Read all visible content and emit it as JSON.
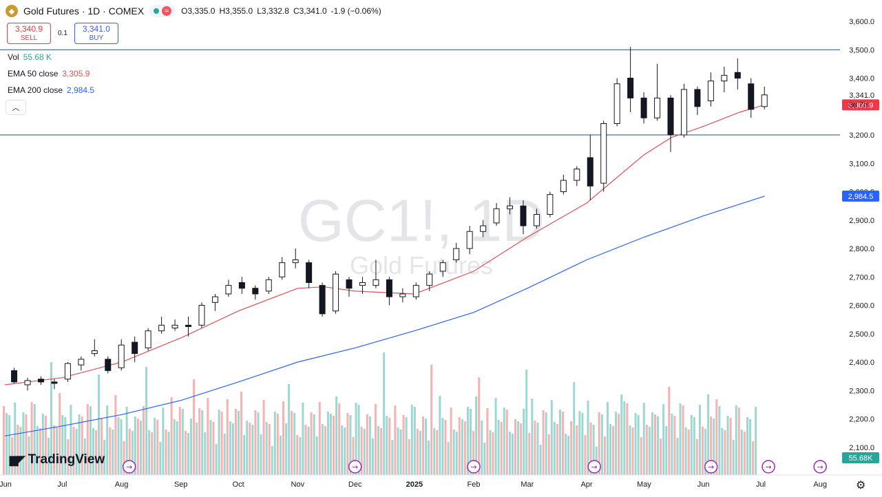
{
  "header": {
    "title": "Gold Futures · 1D · COMEX",
    "open": "3,335.0",
    "high": "3,355.0",
    "low": "3,332.8",
    "close": "3,341.0",
    "change": "-1.9 (−0.06%)",
    "open_label": "O",
    "high_label": "H",
    "low_label": "L",
    "close_label": "C"
  },
  "trade": {
    "sell_price": "3,340.9",
    "sell_label": "SELL",
    "spread": "0.1",
    "buy_price": "3,341.0",
    "buy_label": "BUY"
  },
  "indicators": {
    "vol_label": "Vol",
    "vol_value": "55.68 K",
    "ema50_label": "EMA 50 close",
    "ema50_value": "3,305.9",
    "ema200_label": "EMA 200 close",
    "ema200_value": "2,984.5"
  },
  "collapse_icon": "chevron-up-icon",
  "watermark": {
    "symbol": "GC1!, 1D",
    "name": "Gold Futures"
  },
  "logo": "TradingView",
  "colors": {
    "up": "#26a69a",
    "down": "#ef5350",
    "ema50": "#e05252",
    "ema200": "#2962ff",
    "level": "#1e4e8c"
  },
  "chart_data": {
    "type": "candlestick",
    "y_ticks": [
      "3,600.0",
      "3,500.0",
      "3,400.0",
      "3,300.0",
      "3,200.0",
      "3,100.0",
      "3,000.0",
      "2,900.0",
      "2,800.0",
      "2,700.0",
      "2,600.0",
      "2,500.0",
      "2,400.0",
      "2,300.0",
      "2,200.0",
      "2,100.0"
    ],
    "ylim": [
      2070,
      3640
    ],
    "x_labels": [
      "Jun",
      "Jul",
      "Aug",
      "Sep",
      "Oct",
      "Nov",
      "Dec",
      "2025",
      "Feb",
      "Mar",
      "Apr",
      "May",
      "Jun",
      "Jul",
      "Aug"
    ],
    "x_dates": [
      "2024-06-01",
      "2024-07-01",
      "2024-08-01",
      "2024-09-01",
      "2024-10-01",
      "2024-11-01",
      "2024-12-01",
      "2025-01-01",
      "2025-02-01",
      "2025-03-01",
      "2025-04-01",
      "2025-05-01",
      "2025-06-01",
      "2025-07-01",
      "2025-08-01"
    ],
    "horizontal_levels": [
      {
        "value": 3500,
        "label": "3,500.0"
      },
      {
        "value": 3200,
        "label": "3,200.0"
      }
    ],
    "last_price": {
      "value": 3341.0,
      "label": "3,341.0",
      "countdown": "3d 7h"
    },
    "ema50": {
      "name": "EMA 50 close",
      "last": 3305.9,
      "label": "3,305.9",
      "points": [
        [
          "2024-06-01",
          2320
        ],
        [
          "2024-07-01",
          2345
        ],
        [
          "2024-08-01",
          2400
        ],
        [
          "2024-09-01",
          2485
        ],
        [
          "2024-10-01",
          2580
        ],
        [
          "2024-11-01",
          2660
        ],
        [
          "2024-11-15",
          2665
        ],
        [
          "2024-12-01",
          2650
        ],
        [
          "2025-01-01",
          2640
        ],
        [
          "2025-02-01",
          2720
        ],
        [
          "2025-03-01",
          2840
        ],
        [
          "2025-04-01",
          2960
        ],
        [
          "2025-04-15",
          3040
        ],
        [
          "2025-05-01",
          3130
        ],
        [
          "2025-05-15",
          3190
        ],
        [
          "2025-06-01",
          3230
        ],
        [
          "2025-06-20",
          3280
        ],
        [
          "2025-07-03",
          3305.9
        ]
      ]
    },
    "ema200": {
      "name": "EMA 200 close",
      "last": 2984.5,
      "label": "2,984.5",
      "points": [
        [
          "2024-06-01",
          2140
        ],
        [
          "2024-07-01",
          2175
        ],
        [
          "2024-08-01",
          2215
        ],
        [
          "2024-09-01",
          2265
        ],
        [
          "2024-10-01",
          2330
        ],
        [
          "2024-11-01",
          2400
        ],
        [
          "2024-12-01",
          2450
        ],
        [
          "2025-01-01",
          2510
        ],
        [
          "2025-02-01",
          2575
        ],
        [
          "2025-03-01",
          2660
        ],
        [
          "2025-04-01",
          2760
        ],
        [
          "2025-05-01",
          2840
        ],
        [
          "2025-06-01",
          2915
        ],
        [
          "2025-07-03",
          2984.5
        ]
      ]
    },
    "volume": {
      "name": "Vol",
      "last_label": "55.68K"
    },
    "candles": [
      [
        "2024-06-03",
        2370,
        2380,
        2325,
        2330
      ],
      [
        "2024-06-10",
        2320,
        2345,
        2300,
        2335
      ],
      [
        "2024-06-17",
        2340,
        2350,
        2320,
        2330
      ],
      [
        "2024-06-24",
        2330,
        2340,
        2305,
        2325
      ],
      [
        "2024-07-01",
        2340,
        2400,
        2330,
        2395
      ],
      [
        "2024-07-08",
        2390,
        2420,
        2370,
        2410
      ],
      [
        "2024-07-15",
        2430,
        2480,
        2420,
        2440
      ],
      [
        "2024-07-22",
        2410,
        2420,
        2360,
        2370
      ],
      [
        "2024-07-29",
        2380,
        2480,
        2370,
        2460
      ],
      [
        "2024-08-05",
        2470,
        2490,
        2400,
        2430
      ],
      [
        "2024-08-12",
        2450,
        2520,
        2440,
        2510
      ],
      [
        "2024-08-19",
        2510,
        2560,
        2500,
        2530
      ],
      [
        "2024-08-26",
        2520,
        2550,
        2510,
        2530
      ],
      [
        "2024-09-02",
        2530,
        2560,
        2490,
        2525
      ],
      [
        "2024-09-09",
        2530,
        2610,
        2520,
        2600
      ],
      [
        "2024-09-16",
        2610,
        2640,
        2580,
        2630
      ],
      [
        "2024-09-23",
        2640,
        2690,
        2630,
        2670
      ],
      [
        "2024-09-30",
        2680,
        2700,
        2640,
        2660
      ],
      [
        "2024-10-07",
        2660,
        2670,
        2620,
        2640
      ],
      [
        "2024-10-14",
        2650,
        2700,
        2640,
        2690
      ],
      [
        "2024-10-21",
        2700,
        2770,
        2690,
        2750
      ],
      [
        "2024-10-28",
        2750,
        2800,
        2730,
        2760
      ],
      [
        "2024-11-04",
        2750,
        2760,
        2660,
        2680
      ],
      [
        "2024-11-11",
        2670,
        2680,
        2560,
        2570
      ],
      [
        "2024-11-18",
        2580,
        2720,
        2570,
        2710
      ],
      [
        "2024-11-25",
        2690,
        2700,
        2630,
        2660
      ],
      [
        "2024-12-02",
        2670,
        2700,
        2640,
        2680
      ],
      [
        "2024-12-09",
        2670,
        2760,
        2660,
        2690
      ],
      [
        "2024-12-16",
        2690,
        2700,
        2600,
        2630
      ],
      [
        "2024-12-23",
        2630,
        2660,
        2610,
        2640
      ],
      [
        "2024-12-30",
        2630,
        2680,
        2620,
        2670
      ],
      [
        "2025-01-06",
        2670,
        2720,
        2650,
        2710
      ],
      [
        "2025-01-13",
        2720,
        2760,
        2700,
        2750
      ],
      [
        "2025-01-20",
        2760,
        2820,
        2750,
        2800
      ],
      [
        "2025-01-27",
        2800,
        2880,
        2780,
        2860
      ],
      [
        "2025-02-03",
        2860,
        2900,
        2840,
        2880
      ],
      [
        "2025-02-10",
        2890,
        2960,
        2880,
        2940
      ],
      [
        "2025-02-17",
        2940,
        2980,
        2920,
        2950
      ],
      [
        "2025-02-24",
        2950,
        2970,
        2850,
        2880
      ],
      [
        "2025-03-03",
        2880,
        2940,
        2870,
        2920
      ],
      [
        "2025-03-10",
        2920,
        3000,
        2910,
        2990
      ],
      [
        "2025-03-17",
        3000,
        3060,
        2990,
        3040
      ],
      [
        "2025-03-24",
        3040,
        3090,
        3020,
        3080
      ],
      [
        "2025-03-31",
        3120,
        3200,
        2970,
        3020
      ],
      [
        "2025-04-07",
        3030,
        3250,
        3000,
        3240
      ],
      [
        "2025-04-14",
        3240,
        3400,
        3230,
        3380
      ],
      [
        "2025-04-21",
        3400,
        3510,
        3280,
        3330
      ],
      [
        "2025-04-28",
        3330,
        3350,
        3240,
        3260
      ],
      [
        "2025-05-05",
        3260,
        3450,
        3250,
        3330
      ],
      [
        "2025-05-12",
        3330,
        3340,
        3140,
        3200
      ],
      [
        "2025-05-19",
        3200,
        3380,
        3190,
        3360
      ],
      [
        "2025-05-26",
        3360,
        3370,
        3270,
        3300
      ],
      [
        "2025-06-02",
        3320,
        3420,
        3300,
        3390
      ],
      [
        "2025-06-09",
        3390,
        3440,
        3350,
        3410
      ],
      [
        "2025-06-16",
        3420,
        3470,
        3360,
        3400
      ],
      [
        "2025-06-23",
        3380,
        3400,
        3260,
        3290
      ],
      [
        "2025-06-30",
        3300,
        3370,
        3290,
        3341
      ]
    ]
  }
}
